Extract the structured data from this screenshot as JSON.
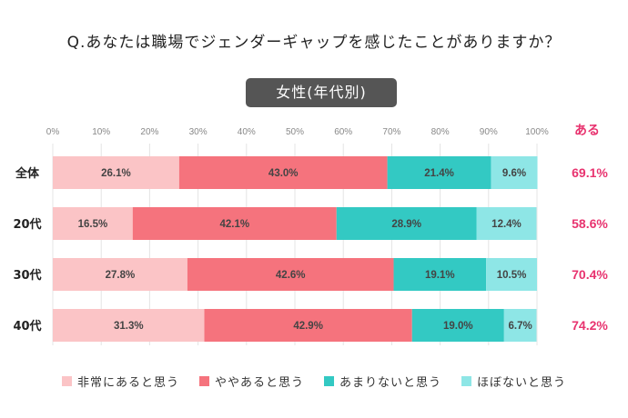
{
  "question": "Q.あなたは職場でジェンダーギャップを感じたことがありますか？",
  "subtitle": "女性(年代別)",
  "colors": {
    "非常にあると思う": "#fbc4c6",
    "ややあると思う": "#f5737d",
    "あまりないと思う": "#33c9c3",
    "ほぼないと思う": "#8ee6e6"
  },
  "chart_data": {
    "type": "bar",
    "orientation": "horizontal",
    "stacked": true,
    "categories": [
      "全体",
      "20代",
      "30代",
      "40代"
    ],
    "series": [
      {
        "name": "非常にあると思う",
        "values": [
          26.1,
          16.5,
          27.8,
          31.3
        ]
      },
      {
        "name": "ややあると思う",
        "values": [
          43.0,
          42.1,
          42.6,
          42.9
        ]
      },
      {
        "name": "あまりないと思う",
        "values": [
          21.4,
          28.9,
          19.1,
          19.0
        ]
      },
      {
        "name": "ほぼないと思う",
        "values": [
          9.6,
          12.4,
          10.5,
          6.7
        ]
      }
    ],
    "x_ticks": [
      "0%",
      "10%",
      "20%",
      "30%",
      "40%",
      "50%",
      "60%",
      "70%",
      "80%",
      "90%",
      "100%"
    ],
    "xlim": [
      0,
      100
    ],
    "grid": true,
    "legend_position": "bottom",
    "extra_column": {
      "label": "ある",
      "values": [
        "69.1%",
        "58.6%",
        "70.4%",
        "74.2%"
      ]
    }
  }
}
